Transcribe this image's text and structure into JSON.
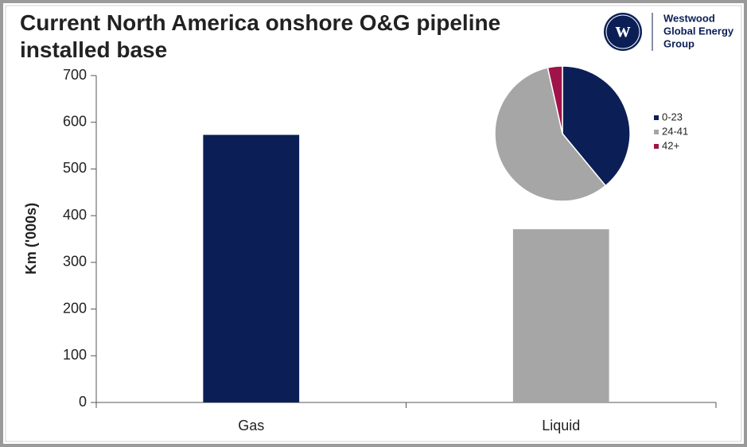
{
  "chart_data": [
    {
      "type": "bar",
      "title": "Current North America onshore O&G pipeline installed base",
      "y_label": "Km ('000s)",
      "categories": [
        "Gas",
        "Liquid"
      ],
      "values": [
        573,
        371
      ],
      "colors": [
        "#0b1f56",
        "#a6a6a6"
      ],
      "ylim": [
        0,
        700
      ],
      "yticks": [
        0,
        100,
        200,
        300,
        400,
        500,
        600,
        700
      ],
      "grid": false
    },
    {
      "type": "pie",
      "categories": [
        "0-23",
        "24-41",
        "42+"
      ],
      "values": [
        39,
        57.5,
        3.5
      ],
      "colors": [
        "#0b1f56",
        "#a6a6a6",
        "#a0134a"
      ],
      "legend": "right"
    }
  ],
  "logo": {
    "initial": "w",
    "lines": [
      "Westwood",
      "Global Energy",
      "Group"
    ]
  }
}
